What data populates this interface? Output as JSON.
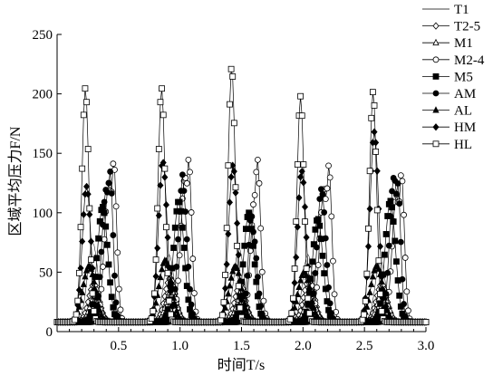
{
  "chart_data": {
    "type": "line",
    "xlabel": "时间T/s",
    "ylabel": "区域平均压力F/N",
    "xlim": [
      0.0,
      3.0
    ],
    "ylim": [
      0,
      250
    ],
    "xticks": [
      {
        "v": 0.5,
        "label": "0.5"
      },
      {
        "v": 1.0,
        "label": "1.0"
      },
      {
        "v": 1.5,
        "label": "1.5"
      },
      {
        "v": 2.0,
        "label": "2.0"
      },
      {
        "v": 2.5,
        "label": "2.5"
      },
      {
        "v": 3.0,
        "label": "3.0"
      }
    ],
    "yticks": [
      {
        "v": 0,
        "label": "0"
      },
      {
        "v": 50,
        "label": "50"
      },
      {
        "v": 100,
        "label": "100"
      },
      {
        "v": 150,
        "label": "150"
      },
      {
        "v": 200,
        "label": "200"
      },
      {
        "v": 250,
        "label": "250"
      }
    ],
    "grid": false,
    "legend_position": "top-right",
    "baseline": 8,
    "cycle_starts": [
      0.18,
      0.8,
      1.37,
      1.93,
      2.52
    ],
    "series": [
      {
        "name": "T1",
        "marker": "none",
        "peak_offset": 0.11,
        "width": 0.06,
        "peaks": [
          75,
          65,
          70,
          65,
          60
        ]
      },
      {
        "name": "T2-5",
        "marker": "diamond-open",
        "peak_offset": 0.12,
        "width": 0.06,
        "peaks": [
          40,
          45,
          40,
          45,
          40
        ]
      },
      {
        "name": "M1",
        "marker": "triangle-open",
        "peak_offset": 0.13,
        "width": 0.06,
        "peaks": [
          30,
          35,
          30,
          30,
          35
        ]
      },
      {
        "name": "M2-4",
        "marker": "circle-open",
        "peak_offset": 0.24,
        "width": 0.05,
        "peaks": [
          125,
          130,
          115,
          120,
          115
        ]
      },
      {
        "name": "M5",
        "marker": "square-filled",
        "peak_offset": 0.19,
        "width": 0.06,
        "peaks": [
          105,
          110,
          100,
          95,
          110
        ]
      },
      {
        "name": "AM",
        "marker": "circle-filled",
        "peak_offset": 0.22,
        "width": 0.05,
        "peaks": [
          120,
          125,
          85,
          120,
          130
        ]
      },
      {
        "name": "AL",
        "marker": "triangle-filled",
        "peak_offset": 0.08,
        "width": 0.07,
        "peaks": [
          55,
          60,
          55,
          50,
          55
        ]
      },
      {
        "name": "HM",
        "marker": "diamond-filled",
        "peak_offset": 0.06,
        "width": 0.05,
        "peaks": [
          122,
          143,
          140,
          135,
          168
        ]
      },
      {
        "name": "HL",
        "marker": "square-open",
        "peak_offset": 0.05,
        "width": 0.04,
        "peaks": [
          205,
          205,
          223,
          198,
          202
        ]
      }
    ],
    "extra_peaks": [
      {
        "series": "M2-4",
        "x": [
          0.46,
          1.07,
          1.63,
          2.21,
          2.8
        ],
        "y": [
          143,
          145,
          145,
          140,
          133
        ]
      },
      {
        "series": "AM",
        "x": [
          0.43,
          1.02,
          1.58,
          2.16,
          2.77
        ],
        "y": [
          135,
          132,
          98,
          88,
          125
        ]
      },
      {
        "series": "T1",
        "x": [
          0.32,
          0.92,
          1.5,
          2.06,
          2.65
        ],
        "y": [
          33,
          40,
          35,
          30,
          40
        ]
      }
    ]
  }
}
